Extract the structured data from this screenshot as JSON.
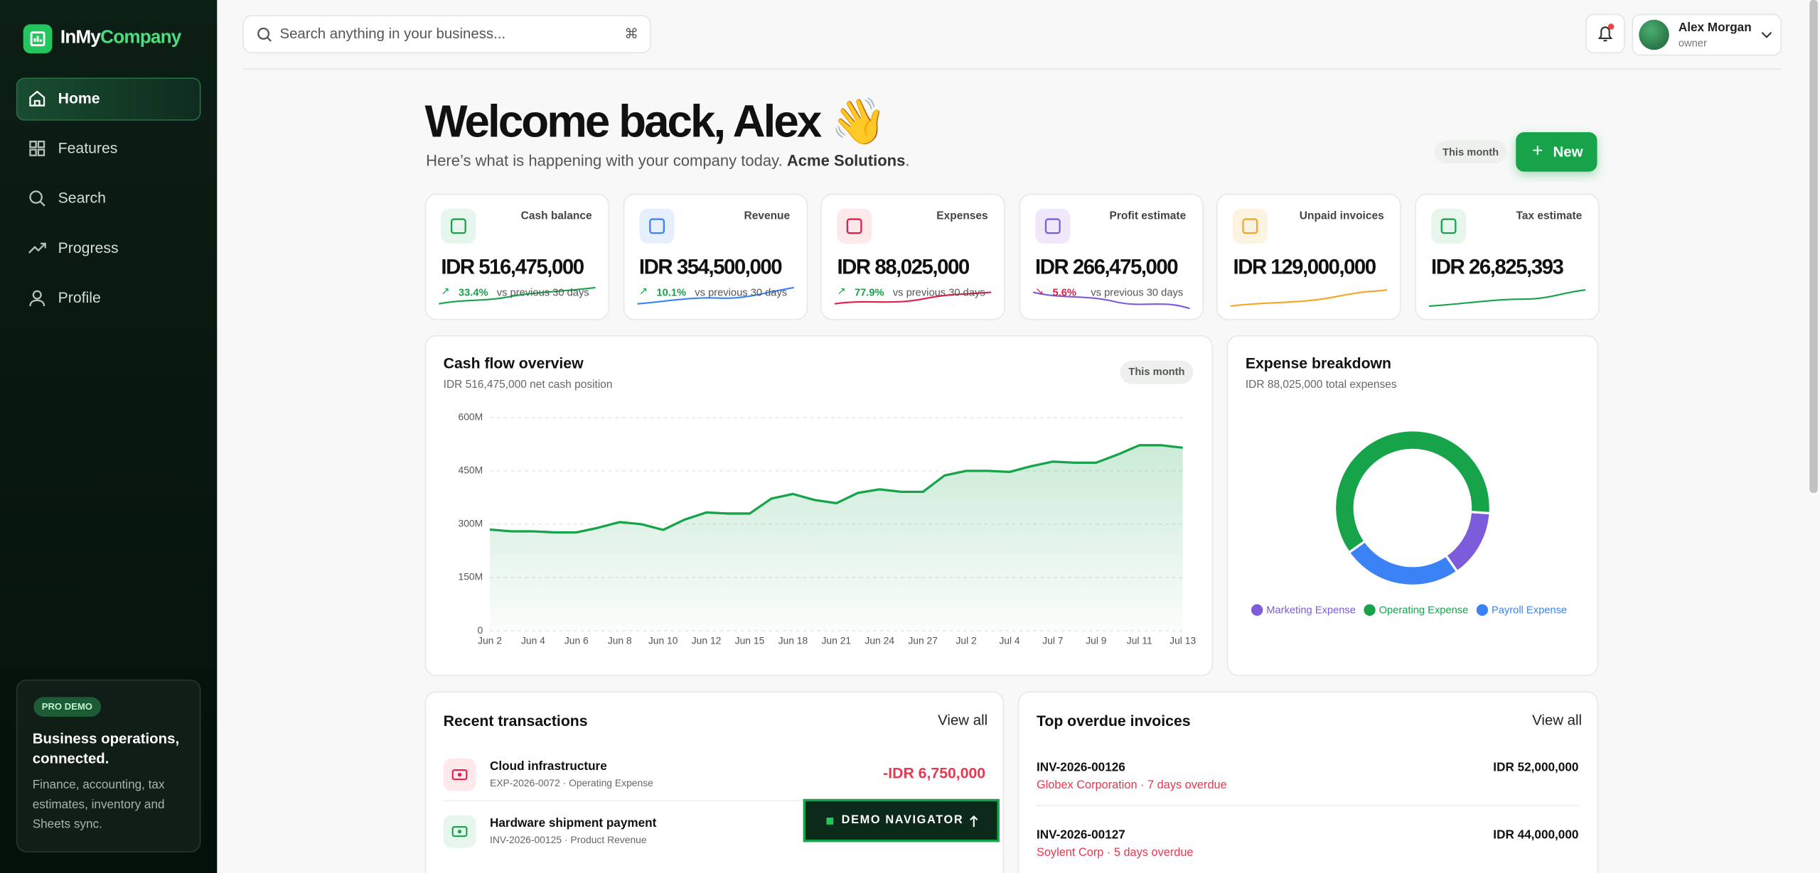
{
  "sidebar": {
    "logo": {
      "part1": "InMy",
      "part2": "Company"
    },
    "nav": [
      "Home",
      "Features",
      "Search",
      "Progress",
      "Profile"
    ],
    "promo": {
      "badge": "PRO DEMO",
      "title": "Business operations, connected.",
      "text": "Finance, accounting, tax estimates, inventory and Sheets sync."
    }
  },
  "header": {
    "search_placeholder": "Search anything in your business...",
    "shortcut": "⌘",
    "user": {
      "name": "Alex Morgan",
      "role": "owner"
    }
  },
  "welcome": {
    "title": "Welcome back, Alex 👋",
    "subtitle": "Here’s what is happening with your company today.",
    "company": "Acme Solutions",
    "subtitle_end": ".",
    "period": "This month",
    "new_button": "New"
  },
  "kpis": [
    {
      "label": "Cash balance",
      "value": "IDR 516,475,000",
      "change": "33.4%",
      "trend": "up",
      "note": "vs previous 30 days"
    },
    {
      "label": "Revenue",
      "value": "IDR 354,500,000",
      "change": "10.1%",
      "trend": "up",
      "note": "vs previous 30 days"
    },
    {
      "label": "Expenses",
      "value": "IDR 88,025,000",
      "change": "77.9%",
      "trend": "up",
      "note": "vs previous 30 days"
    },
    {
      "label": "Profit estimate",
      "value": "IDR 266,475,000",
      "change": "5.6%",
      "trend": "down",
      "note": "vs previous 30 days"
    },
    {
      "label": "Unpaid invoices",
      "value": "IDR 129,000,000"
    },
    {
      "label": "Tax estimate",
      "value": "IDR 26,825,393"
    }
  ],
  "chart_data": [
    {
      "type": "line",
      "title": "Cash flow overview",
      "subtitle": "IDR 516,475,000 net cash position",
      "badge": "This month",
      "categories": [
        "Jun 2",
        null,
        "Jun 4",
        null,
        "Jun 6",
        null,
        "Jun 8",
        null,
        "Jun 10",
        null,
        "Jun 12",
        null,
        "Jun 15",
        null,
        "Jun 18",
        null,
        "Jun 21",
        null,
        "Jun 24",
        null,
        "Jun 27",
        null,
        "Jul 2",
        null,
        "Jul 4",
        null,
        "Jul 7",
        null,
        "Jul 9",
        null,
        "Jul 11",
        null,
        "Jul 13"
      ],
      "values": [
        285,
        280,
        280,
        277,
        277,
        290,
        306,
        300,
        284,
        313,
        333,
        330,
        330,
        372,
        385,
        368,
        359,
        388,
        398,
        391,
        391,
        437,
        450,
        450,
        447,
        463,
        476,
        473,
        473,
        496,
        522,
        522,
        515
      ],
      "color": "#16a34a",
      "ylim": [
        0,
        600
      ],
      "yticks": [
        0,
        {
          "value": 150,
          "label": "150M"
        },
        {
          "value": 300,
          "label": "300M"
        },
        {
          "value": 450,
          "label": "450M"
        },
        {
          "value": 600,
          "label": "600M"
        }
      ],
      "grid": true
    },
    {
      "type": "pie",
      "title": "Expense breakdown",
      "subtitle": "IDR 88,025,000 total expenses",
      "categories": [
        "Marketing Expense",
        "Operating Expense",
        "Payroll Expense"
      ],
      "values": [
        12500000,
        53525000,
        22000000
      ],
      "colors": [
        "#7c5cdb",
        "#16a34a",
        "#3b82f6"
      ]
    }
  ],
  "transactions": {
    "title": "Recent transactions",
    "view_all": "View all",
    "rows": [
      {
        "title": "Cloud infrastructure",
        "subtitle": "EXP-2026-0072 · Operating Expense",
        "amount": "-IDR 6,750,000"
      },
      {
        "title": "Hardware shipment payment",
        "subtitle": "INV-2026-00125 · Product Revenue"
      }
    ]
  },
  "invoices": {
    "title": "Top overdue invoices",
    "view_all": "View all",
    "rows": [
      {
        "number": "INV-2026-00126",
        "client": "Globex Corporation · 7 days overdue",
        "amount": "IDR 52,000,000"
      },
      {
        "number": "INV-2026-00127",
        "client": "Soylent Corp · 5 days overdue",
        "amount": "IDR 44,000,000"
      }
    ]
  },
  "demo_navigator": {
    "label": "DEMO NAVIGATOR"
  }
}
